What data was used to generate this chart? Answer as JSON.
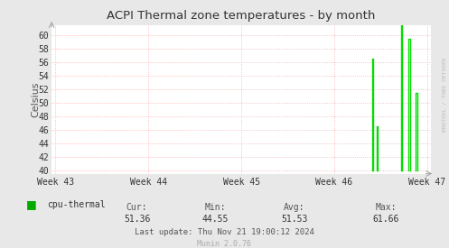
{
  "title": "ACPI Thermal zone temperatures - by month",
  "ylabel": "Celsius",
  "background_color": "#e8e8e8",
  "plot_background": "#ffffff",
  "grid_color": "#ffaaaa",
  "line_color": "#00dd00",
  "yticks": [
    40,
    42,
    44,
    46,
    48,
    50,
    52,
    54,
    56,
    58,
    60
  ],
  "ylim": [
    39.5,
    61.5
  ],
  "xtick_labels": [
    "Week 43",
    "Week 44",
    "Week 45",
    "Week 46",
    "Week 47"
  ],
  "legend_label": "cpu-thermal",
  "legend_color": "#00aa00",
  "stats": {
    "cur": "51.36",
    "min": "44.55",
    "avg": "51.53",
    "max": "61.66"
  },
  "last_update": "Last update: Thu Nov 21 19:00:12 2024",
  "munin_version": "Munin 2.0.76",
  "watermark": "RRDTOOL / TOBI OETIKER",
  "spike_segments": [
    {
      "x": [
        0.844,
        0.844,
        0.848,
        0.848
      ],
      "y": [
        40,
        56.5,
        56.5,
        40
      ]
    },
    {
      "x": [
        0.856,
        0.856,
        0.86,
        0.86
      ],
      "y": [
        40,
        46.5,
        46.5,
        40
      ]
    },
    {
      "x": [
        0.92,
        0.92,
        0.924,
        0.924
      ],
      "y": [
        40,
        61.66,
        61.66,
        40
      ]
    },
    {
      "x": [
        0.94,
        0.94,
        0.944,
        0.944
      ],
      "y": [
        40,
        59.5,
        59.5,
        40
      ]
    },
    {
      "x": [
        0.96,
        0.96,
        0.964,
        0.964
      ],
      "y": [
        40,
        51.5,
        51.5,
        40
      ]
    }
  ]
}
